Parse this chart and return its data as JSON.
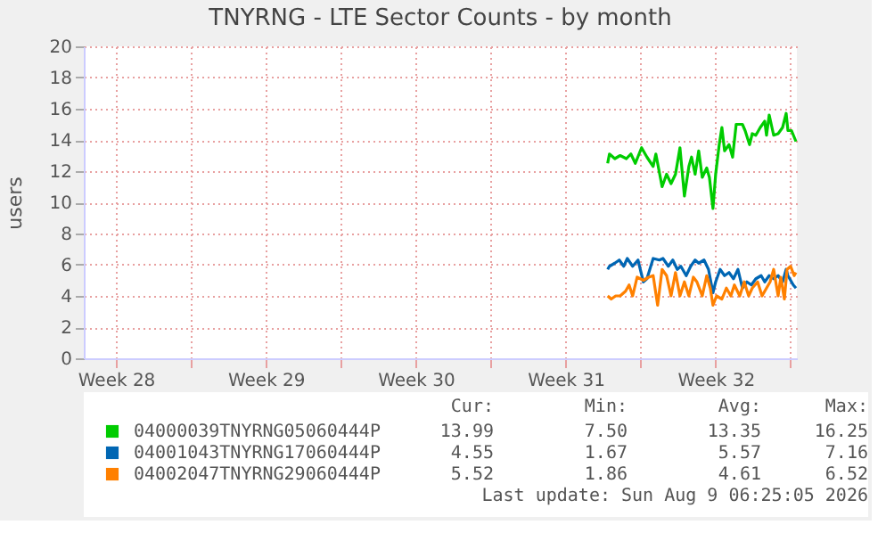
{
  "chart_data": {
    "type": "line",
    "title": "TNYRNG - LTE Sector Counts - by month",
    "ylabel": "users",
    "xlim": [
      "2026-07-07T00:00",
      "2026-08-09T07:00"
    ],
    "ylim": [
      0,
      20
    ],
    "yticks": [
      0,
      2,
      4,
      6,
      8,
      10,
      12,
      14,
      16,
      18,
      20
    ],
    "xticks": [
      {
        "value": "2026-07-08T12:00",
        "label": "Week 28"
      },
      {
        "value": "2026-07-12",
        "label": null
      },
      {
        "value": "2026-07-15T12:00",
        "label": "Week 29"
      },
      {
        "value": "2026-07-19",
        "label": null
      },
      {
        "value": "2026-07-22T12:00",
        "label": "Week 30"
      },
      {
        "value": "2026-07-26",
        "label": null
      },
      {
        "value": "2026-07-29T12:00",
        "label": "Week 31"
      },
      {
        "value": "2026-08-02",
        "label": null
      },
      {
        "value": "2026-08-05T12:00",
        "label": "Week 32"
      },
      {
        "value": "2026-08-09",
        "label": null
      }
    ],
    "grid": true,
    "legend": "bottom",
    "line_style": "solid",
    "series": [
      {
        "name": "04000039TNYRNG05060444P",
        "color": "#00cc00",
        "x": [
          "2026-07-31T11:00",
          "2026-07-31T13:00",
          "2026-07-31T19:00",
          "2026-08-01T01:00",
          "2026-08-01T08:00",
          "2026-08-01T13:00",
          "2026-08-01T18:00",
          "2026-08-02T01:00",
          "2026-08-02T07:00",
          "2026-08-02T14:00",
          "2026-08-02T17:00",
          "2026-08-03T00:00",
          "2026-08-03T05:00",
          "2026-08-03T10:00",
          "2026-08-03T15:00",
          "2026-08-03T20:00",
          "2026-08-04T01:00",
          "2026-08-04T06:00",
          "2026-08-04T09:00",
          "2026-08-04T13:00",
          "2026-08-04T17:00",
          "2026-08-04T21:00",
          "2026-08-05T02:00",
          "2026-08-05T05:00",
          "2026-08-05T09:00",
          "2026-08-05T12:00",
          "2026-08-05T16:00",
          "2026-08-05T19:00",
          "2026-08-05T22:00",
          "2026-08-06T03:00",
          "2026-08-06T07:00",
          "2026-08-06T11:00",
          "2026-08-06T18:00",
          "2026-08-06T21:00",
          "2026-08-07T02:00",
          "2026-08-07T05:00",
          "2026-08-07T09:00",
          "2026-08-07T14:00",
          "2026-08-07T19:00",
          "2026-08-07T21:00",
          "2026-08-08T00:00",
          "2026-08-08T05:00",
          "2026-08-08T10:00",
          "2026-08-08T15:00",
          "2026-08-08T19:00",
          "2026-08-08T21:00",
          "2026-08-09T01:00",
          "2026-08-09T06:00"
        ],
        "values": [
          12.5,
          13.1,
          12.8,
          13.0,
          12.8,
          13.1,
          12.5,
          13.5,
          12.9,
          12.3,
          13.1,
          11.0,
          11.8,
          11.2,
          11.8,
          13.5,
          10.4,
          12.3,
          12.9,
          11.8,
          13.3,
          11.6,
          12.2,
          11.6,
          9.6,
          11.8,
          13.7,
          14.8,
          13.3,
          13.7,
          12.9,
          15.0,
          15.0,
          14.6,
          13.7,
          14.4,
          14.3,
          14.8,
          15.2,
          14.3,
          15.6,
          14.3,
          14.4,
          14.8,
          15.7,
          14.6,
          14.6,
          13.9
        ]
      },
      {
        "name": "04001043TNYRNG17060444P",
        "color": "#0066b3",
        "x": [
          "2026-07-31T11:00",
          "2026-07-31T13:00",
          "2026-07-31T19:00",
          "2026-08-01T00:00",
          "2026-08-01T05:00",
          "2026-08-01T09:00",
          "2026-08-01T15:00",
          "2026-08-01T21:00",
          "2026-08-02T03:00",
          "2026-08-02T07:00",
          "2026-08-02T14:00",
          "2026-08-02T21:00",
          "2026-08-03T01:00",
          "2026-08-03T07:00",
          "2026-08-03T12:00",
          "2026-08-03T17:00",
          "2026-08-03T21:00",
          "2026-08-04T03:00",
          "2026-08-04T08:00",
          "2026-08-04T13:00",
          "2026-08-04T17:00",
          "2026-08-04T23:00",
          "2026-08-05T04:00",
          "2026-08-05T09:00",
          "2026-08-05T12:00",
          "2026-08-05T17:00",
          "2026-08-05T22:00",
          "2026-08-06T03:00",
          "2026-08-06T08:00",
          "2026-08-06T13:00",
          "2026-08-06T18:00",
          "2026-08-06T23:00",
          "2026-08-07T04:00",
          "2026-08-07T09:00",
          "2026-08-07T15:00",
          "2026-08-07T19:00",
          "2026-08-08T00:00",
          "2026-08-08T05:00",
          "2026-08-08T10:00",
          "2026-08-08T15:00",
          "2026-08-08T19:00",
          "2026-08-08T21:00",
          "2026-08-09T03:00",
          "2026-08-09T06:00"
        ],
        "values": [
          5.7,
          5.9,
          6.1,
          6.3,
          5.9,
          6.4,
          5.9,
          6.3,
          4.9,
          5.1,
          6.4,
          6.3,
          6.4,
          5.9,
          6.3,
          5.7,
          5.9,
          5.3,
          5.9,
          6.3,
          6.1,
          6.3,
          5.7,
          4.2,
          4.9,
          5.7,
          5.3,
          5.5,
          5.1,
          5.7,
          4.5,
          4.9,
          4.7,
          5.1,
          5.3,
          4.9,
          5.3,
          5.1,
          5.3,
          4.9,
          5.7,
          5.3,
          4.7,
          4.5
        ]
      },
      {
        "name": "04002047TNYRNG29060444P",
        "color": "#ff8000",
        "x": [
          "2026-07-31T11:00",
          "2026-07-31T15:00",
          "2026-07-31T20:00",
          "2026-08-01T01:00",
          "2026-08-01T07:00",
          "2026-08-01T11:00",
          "2026-08-01T15:00",
          "2026-08-01T20:00",
          "2026-08-02T03:00",
          "2026-08-02T09:00",
          "2026-08-02T14:00",
          "2026-08-02T19:00",
          "2026-08-03T00:00",
          "2026-08-03T05:00",
          "2026-08-03T10:00",
          "2026-08-03T15:00",
          "2026-08-03T20:00",
          "2026-08-04T01:00",
          "2026-08-04T06:00",
          "2026-08-04T11:00",
          "2026-08-04T15:00",
          "2026-08-04T21:00",
          "2026-08-05T02:00",
          "2026-08-05T06:00",
          "2026-08-05T09:00",
          "2026-08-05T13:00",
          "2026-08-05T19:00",
          "2026-08-06T00:00",
          "2026-08-06T05:00",
          "2026-08-06T09:00",
          "2026-08-06T15:00",
          "2026-08-06T20:00",
          "2026-08-07T01:00",
          "2026-08-07T05:00",
          "2026-08-07T11:00",
          "2026-08-07T16:00",
          "2026-08-07T21:00",
          "2026-08-08T01:00",
          "2026-08-08T05:00",
          "2026-08-08T10:00",
          "2026-08-08T13:00",
          "2026-08-08T17:00",
          "2026-08-08T20:00",
          "2026-08-09T00:00",
          "2026-08-09T04:00",
          "2026-08-09T06:00"
        ],
        "values": [
          4.0,
          3.8,
          4.0,
          4.0,
          4.3,
          4.7,
          4.0,
          5.2,
          5.0,
          5.2,
          5.3,
          3.4,
          5.7,
          5.3,
          4.0,
          5.5,
          4.0,
          4.9,
          4.0,
          5.2,
          4.9,
          4.0,
          5.3,
          4.5,
          3.4,
          4.0,
          3.8,
          4.5,
          4.0,
          4.7,
          4.0,
          4.9,
          4.0,
          4.5,
          4.9,
          4.0,
          4.5,
          4.9,
          5.7,
          4.0,
          5.2,
          3.8,
          5.7,
          5.9,
          5.3,
          5.5
        ]
      }
    ],
    "annotations": [
      "Cur: Min: Avg: Max:",
      "13.99 7.50 13.35 16.25",
      "4.55 1.67 5.57 7.16",
      "5.52 1.86 4.61 6.52",
      "Last update: Sun Aug  9 06:25:05 2026"
    ]
  }
}
